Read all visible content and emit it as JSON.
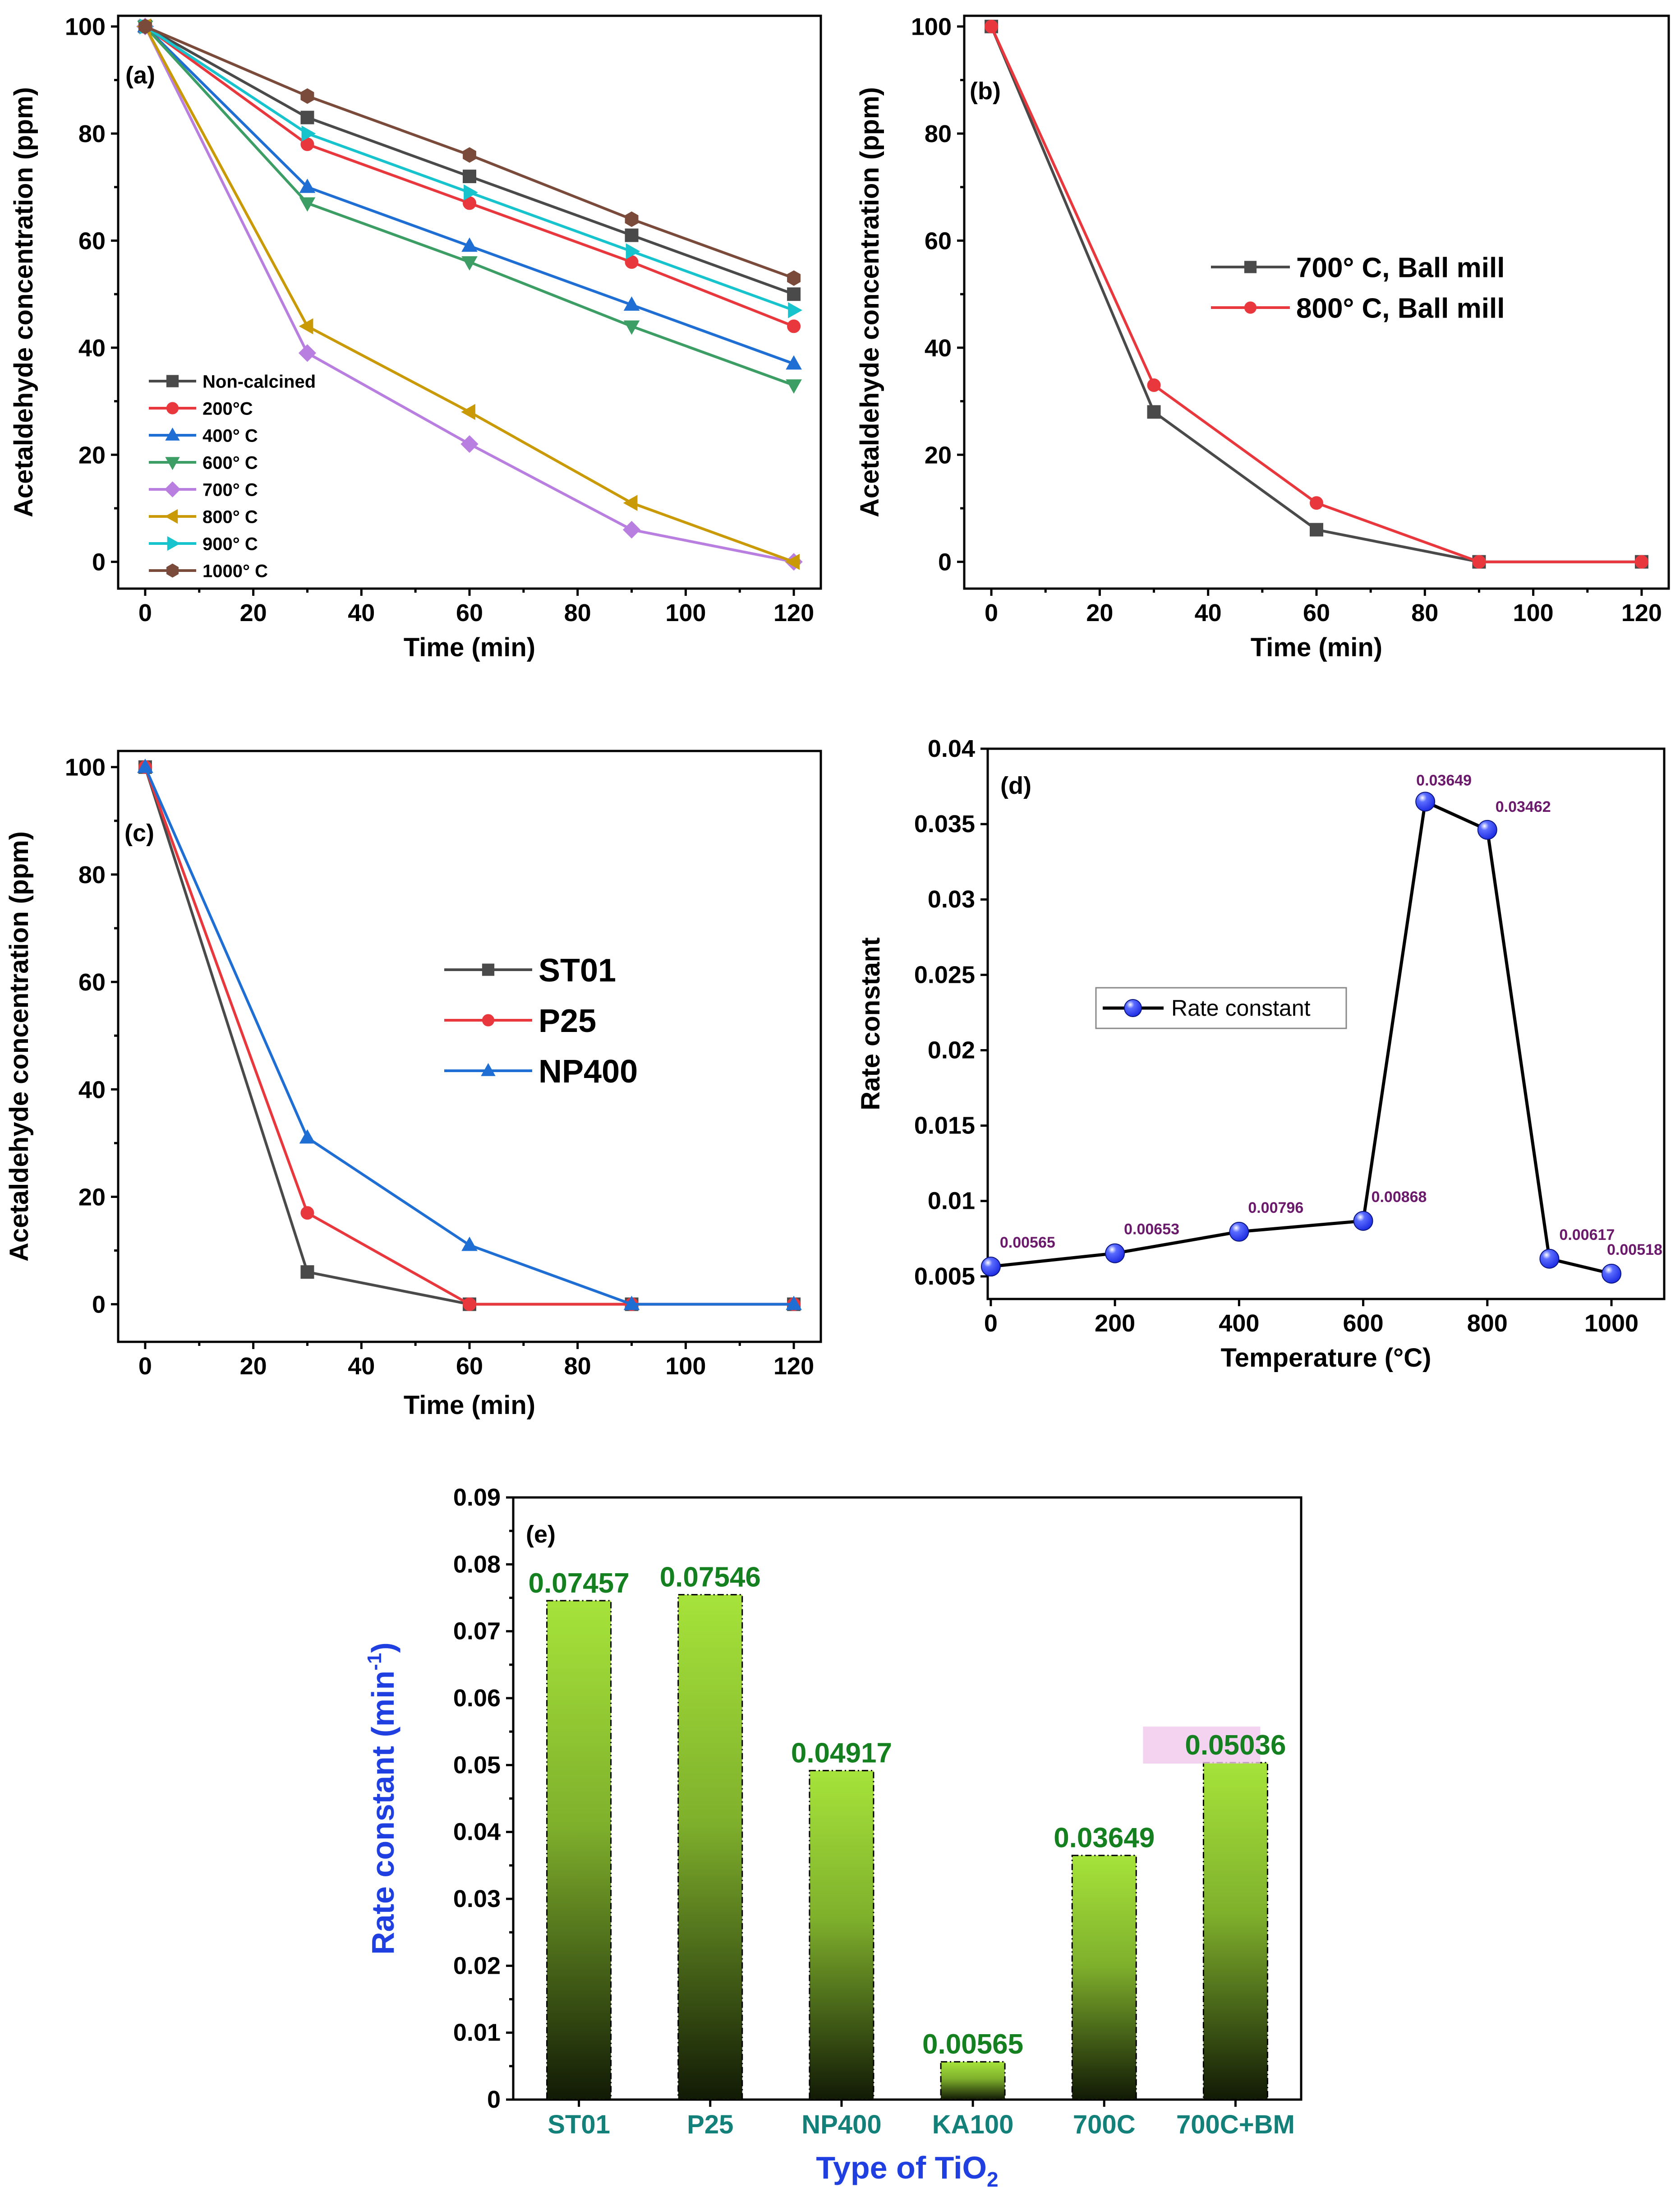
{
  "colors": {
    "s_black": "#4a4a4a",
    "s_red": "#e8383d",
    "s_blue": "#1f6ed4",
    "s_green": "#3c9e64",
    "s_violet": "#b87fe0",
    "s_gold": "#c99a06",
    "s_cyan": "#17c3cd",
    "s_brown": "#7a4a3a",
    "k_line": "#000000",
    "k_point": "#1a28e0",
    "k_label": "#6b1a6b",
    "bar_top": "#a6e33a",
    "bar_bottom": "#111a05",
    "bar_value": "#158020",
    "e_tick_label": "#14807a",
    "e_xlabel": "#1f3fe0",
    "e_ylabel": "#1f3fe0",
    "highlight": "#f0c8ec"
  },
  "chart_data": [
    {
      "panel": "(a)",
      "type": "line",
      "xlabel": "Time (min)",
      "ylabel": "Acetaldehyde concentration (ppm)",
      "xlim": [
        -5,
        125
      ],
      "ylim": [
        -5,
        102
      ],
      "xticks": [
        "0",
        "20",
        "40",
        "60",
        "80",
        "100",
        "120"
      ],
      "yticks": [
        "0",
        "20",
        "40",
        "60",
        "80",
        "100"
      ],
      "legend_position": "bottom-left",
      "x": [
        0,
        30,
        60,
        90,
        120
      ],
      "series": [
        {
          "name": "Non-calcined",
          "marker": "square",
          "color": "s_black",
          "values": [
            100,
            83,
            72,
            61,
            50
          ]
        },
        {
          "name": "200°C",
          "marker": "circle",
          "color": "s_red",
          "values": [
            100,
            78,
            67,
            56,
            44
          ]
        },
        {
          "name": "400° C",
          "marker": "triangle-up",
          "color": "s_blue",
          "values": [
            100,
            70,
            59,
            48,
            37
          ]
        },
        {
          "name": "600° C",
          "marker": "triangle-down",
          "color": "s_green",
          "values": [
            100,
            67,
            56,
            44,
            33
          ]
        },
        {
          "name": "700° C",
          "marker": "diamond",
          "color": "s_violet",
          "values": [
            100,
            39,
            22,
            6,
            0
          ]
        },
        {
          "name": "800° C",
          "marker": "triangle-left",
          "color": "s_gold",
          "values": [
            100,
            44,
            28,
            11,
            0
          ]
        },
        {
          "name": "900° C",
          "marker": "triangle-right",
          "color": "s_cyan",
          "values": [
            100,
            80,
            69,
            58,
            47
          ]
        },
        {
          "name": "1000° C",
          "marker": "hexagon",
          "color": "s_brown",
          "values": [
            100,
            87,
            76,
            64,
            53
          ]
        }
      ]
    },
    {
      "panel": "(b)",
      "type": "line",
      "xlabel": "Time (min)",
      "ylabel": "Acetaldehyde concentration (ppm)",
      "xlim": [
        -5,
        125
      ],
      "ylim": [
        -5,
        102
      ],
      "xticks": [
        "0",
        "20",
        "40",
        "60",
        "80",
        "100",
        "120"
      ],
      "yticks": [
        "0",
        "20",
        "40",
        "60",
        "80",
        "100"
      ],
      "legend_position": "center-right",
      "x": [
        0,
        30,
        60,
        90,
        120
      ],
      "series": [
        {
          "name": "700° C, Ball mill",
          "marker": "square",
          "color": "s_black",
          "values": [
            100,
            28,
            6,
            0,
            0
          ]
        },
        {
          "name": "800° C, Ball mill",
          "marker": "circle",
          "color": "s_red",
          "values": [
            100,
            33,
            11,
            0,
            0
          ]
        }
      ]
    },
    {
      "panel": "(c)",
      "type": "line",
      "xlabel": "Time (min)",
      "ylabel": "Acetaldehyde concentration (ppm)",
      "xlim": [
        -5,
        125
      ],
      "ylim": [
        -7,
        103
      ],
      "xticks": [
        "0",
        "20",
        "40",
        "60",
        "80",
        "100",
        "120"
      ],
      "yticks": [
        "0",
        "20",
        "40",
        "60",
        "80",
        "100"
      ],
      "legend_position": "center-right",
      "x": [
        0,
        30,
        60,
        90,
        120
      ],
      "series": [
        {
          "name": "ST01",
          "marker": "square",
          "color": "s_black",
          "values": [
            100,
            6,
            0,
            0,
            0
          ]
        },
        {
          "name": "P25",
          "marker": "circle",
          "color": "s_red",
          "values": [
            100,
            17,
            0,
            0,
            0
          ]
        },
        {
          "name": "NP400",
          "marker": "triangle-up",
          "color": "s_blue",
          "values": [
            100,
            31,
            11,
            0,
            0
          ]
        }
      ]
    },
    {
      "panel": "(d)",
      "type": "line",
      "xlabel": "Temperature (°C)",
      "ylabel": "Rate constant",
      "xlim": [
        -5,
        1085
      ],
      "ylim": [
        0.0035,
        0.04
      ],
      "xticks": [
        "0",
        "200",
        "400",
        "600",
        "800",
        "1000"
      ],
      "yticks": [
        "0.005",
        "0.01",
        "0.015",
        "0.02",
        "0.025",
        "0.03",
        "0.035",
        "0.04"
      ],
      "legend_position": "center-left",
      "x": [
        0,
        200,
        400,
        600,
        700,
        800,
        900,
        1000
      ],
      "series": [
        {
          "name": "Rate constant",
          "marker": "sphere",
          "values": [
            0.00565,
            0.00653,
            0.00796,
            0.00868,
            0.03649,
            0.03462,
            0.00617,
            0.00518
          ]
        }
      ],
      "data_labels": [
        "0.00565",
        "0.00653",
        "0.00796",
        "0.00868",
        "0.03649",
        "0.03462",
        "0.00617",
        "0.00518"
      ]
    },
    {
      "panel": "(e)",
      "type": "bar",
      "xlabel": "Type of TiO",
      "xlabel_sub": "2",
      "ylabel": "Rate constant (min",
      "ylabel_sup": "-1",
      "ylabel_close": ")",
      "ylim": [
        0,
        0.09
      ],
      "yticks": [
        "0",
        "0.01",
        "0.02",
        "0.03",
        "0.04",
        "0.05",
        "0.06",
        "0.07",
        "0.08",
        "0.09"
      ],
      "categories": [
        "ST01",
        "P25",
        "NP400",
        "KA100",
        "700C",
        "700C+BM"
      ],
      "values": [
        0.07457,
        0.07546,
        0.04917,
        0.00565,
        0.03649,
        0.05036
      ],
      "data_labels": [
        "0.07457",
        "0.07546",
        "0.04917",
        "0.00565",
        "0.03649",
        "0.05036"
      ],
      "highlighted_label": "0.05036"
    }
  ]
}
